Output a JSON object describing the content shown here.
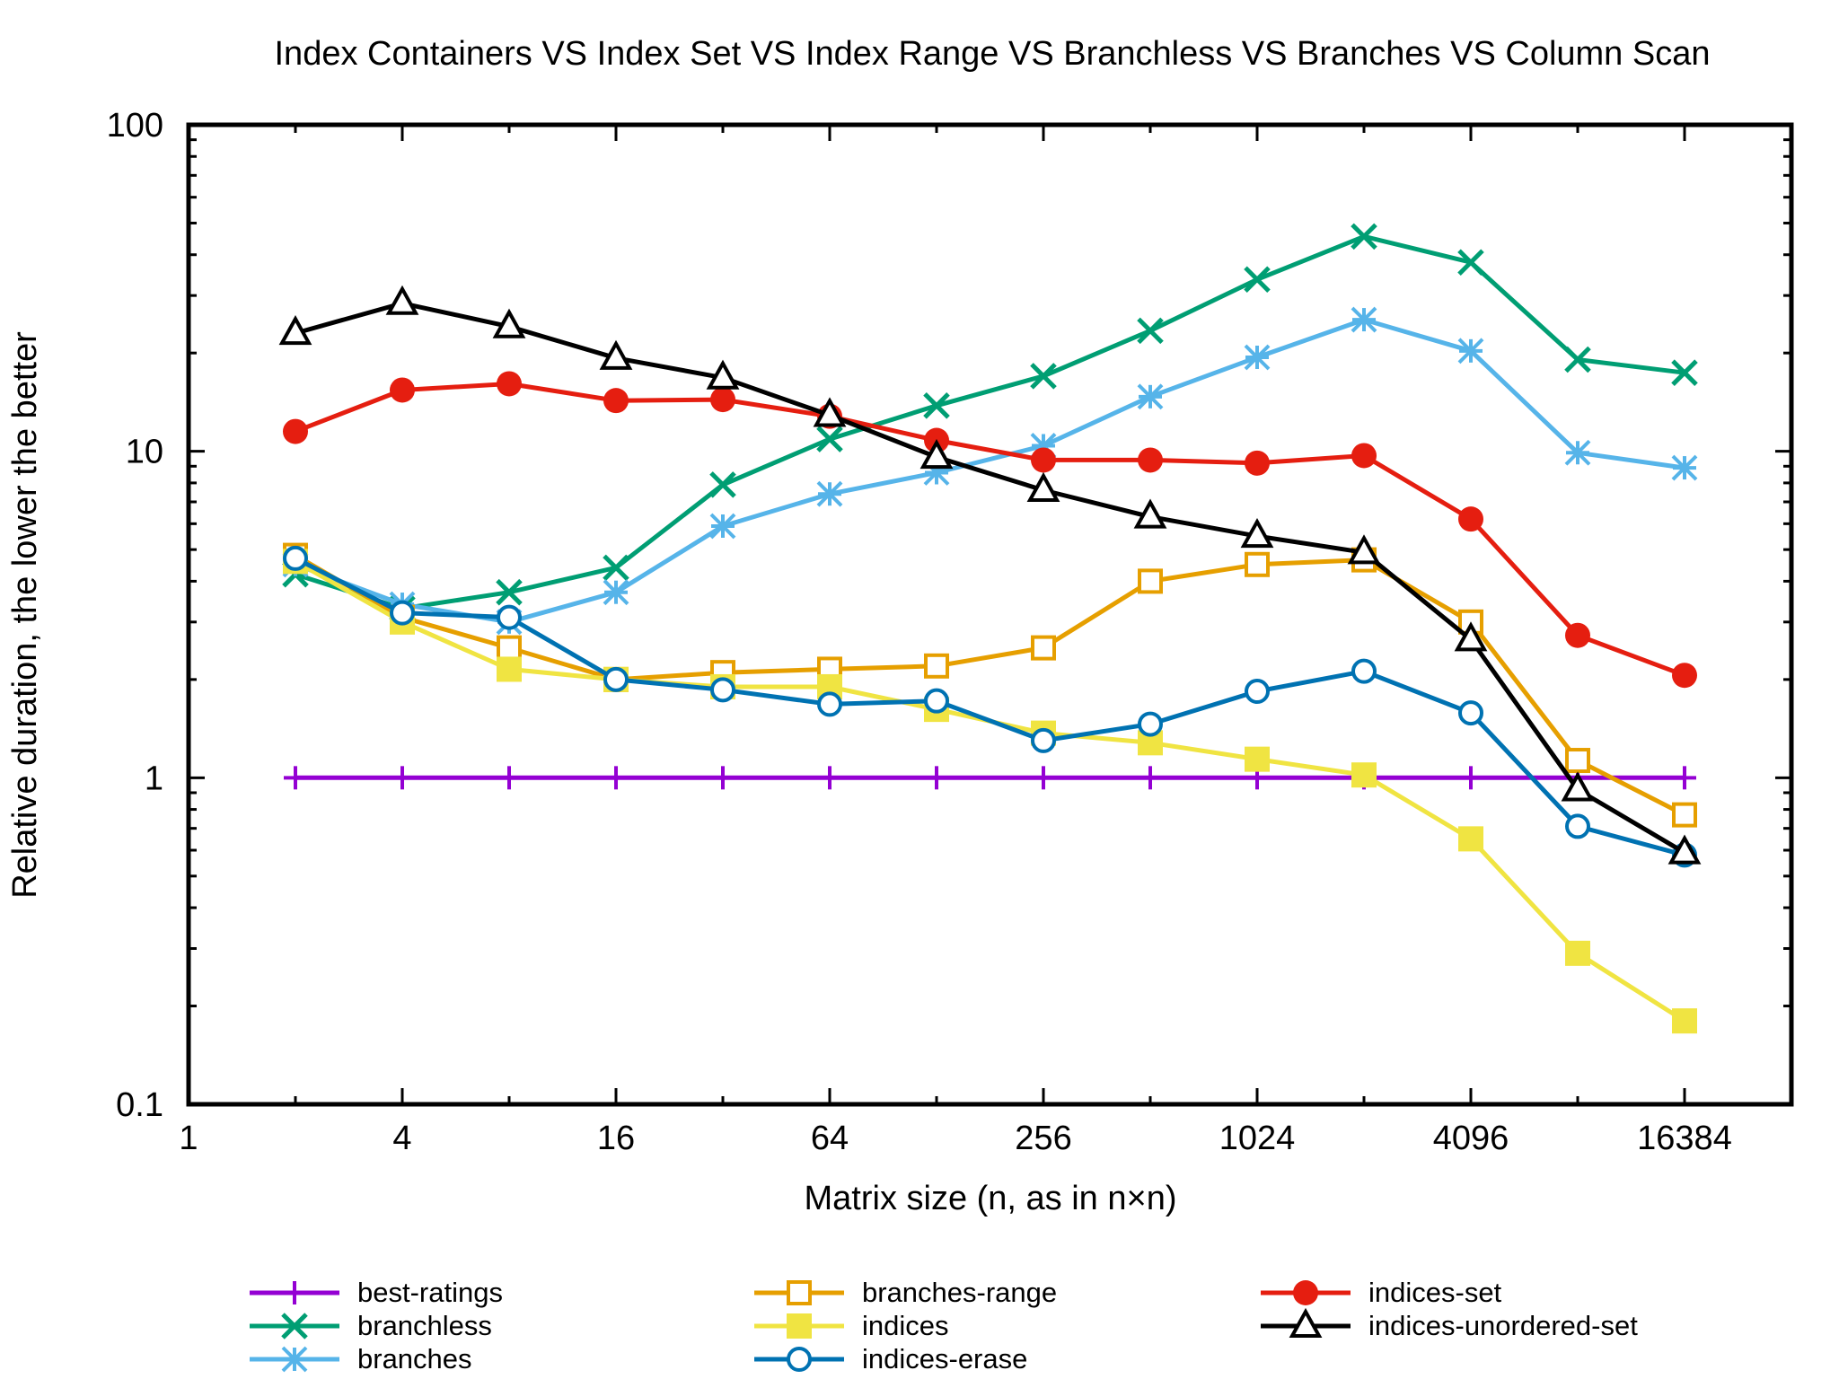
{
  "chart_data": {
    "type": "line",
    "title": "Index Containers VS Index Set VS Index Range VS Branchless VS Branches VS Column Scan",
    "xlabel": "Matrix size (n, as in n×n)",
    "ylabel": "Relative duration, the lower the better",
    "xscale": "log2",
    "yscale": "log10",
    "xlim": [
      1,
      32768
    ],
    "ylim": [
      0.1,
      100
    ],
    "xticks": [
      1,
      4,
      16,
      64,
      256,
      1024,
      4096,
      16384
    ],
    "xtick_labels": [
      "1",
      "4",
      "16",
      "64",
      "256",
      "1024",
      "4096",
      "16384"
    ],
    "yticks": [
      0.1,
      1,
      10,
      100
    ],
    "ytick_labels": [
      "0.1",
      "1",
      "10",
      "100"
    ],
    "grid": false,
    "legend_position": "bottom",
    "x": [
      2,
      4,
      8,
      16,
      32,
      64,
      128,
      256,
      512,
      1024,
      2048,
      4096,
      8192,
      16384
    ],
    "series": [
      {
        "name": "best-ratings",
        "color": "#9400d3",
        "marker": "plus",
        "values": [
          1,
          1,
          1,
          1,
          1,
          1,
          1,
          1,
          1,
          1,
          1,
          1,
          1,
          1
        ]
      },
      {
        "name": "branchless",
        "color": "#009e73",
        "marker": "cross",
        "values": [
          4.2,
          3.3,
          3.7,
          4.4,
          7.9,
          10.9,
          13.8,
          17.0,
          23.4,
          33.6,
          45.5,
          37.9,
          19.1,
          17.4
        ]
      },
      {
        "name": "branches",
        "color": "#56b4e9",
        "marker": "star",
        "values": [
          4.5,
          3.4,
          3.0,
          3.7,
          5.9,
          7.4,
          8.6,
          10.4,
          14.7,
          19.4,
          25.3,
          20.3,
          9.9,
          8.9
        ]
      },
      {
        "name": "branches-range",
        "color": "#e69f00",
        "marker": "open-square",
        "values": [
          4.8,
          3.1,
          2.5,
          2.0,
          2.1,
          2.15,
          2.2,
          2.5,
          4.0,
          4.5,
          4.65,
          3.0,
          1.13,
          0.77
        ]
      },
      {
        "name": "indices",
        "color": "#f0e442",
        "marker": "filled-square",
        "values": [
          4.6,
          3.0,
          2.15,
          2.0,
          1.9,
          1.9,
          1.62,
          1.37,
          1.28,
          1.14,
          1.02,
          0.65,
          0.29,
          0.18
        ]
      },
      {
        "name": "indices-erase",
        "color": "#0072b2",
        "marker": "open-circle",
        "values": [
          4.7,
          3.2,
          3.1,
          2.0,
          1.86,
          1.68,
          1.72,
          1.3,
          1.46,
          1.84,
          2.12,
          1.58,
          0.71,
          0.58
        ]
      },
      {
        "name": "indices-set",
        "color": "#e51e10",
        "marker": "filled-circle",
        "values": [
          11.5,
          15.4,
          16.1,
          14.3,
          14.4,
          12.8,
          10.8,
          9.4,
          9.4,
          9.2,
          9.7,
          6.2,
          2.73,
          2.06
        ]
      },
      {
        "name": "indices-unordered-set",
        "color": "#000000",
        "marker": "open-triangle",
        "values": [
          23.0,
          28.4,
          24.1,
          19.3,
          16.8,
          12.9,
          9.6,
          7.6,
          6.3,
          5.5,
          4.9,
          2.65,
          0.92,
          0.59
        ]
      }
    ]
  }
}
